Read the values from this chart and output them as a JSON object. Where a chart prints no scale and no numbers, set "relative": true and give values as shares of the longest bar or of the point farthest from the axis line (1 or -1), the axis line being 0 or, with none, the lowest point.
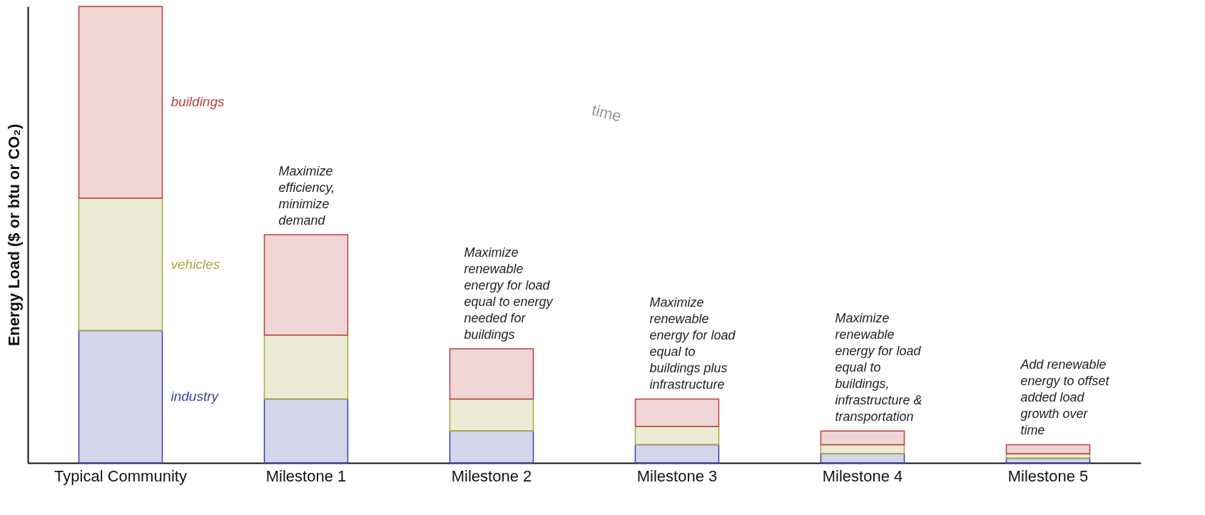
{
  "chart_data": {
    "type": "bar",
    "stacked": true,
    "relative": true,
    "ylabel": "Energy Load ($ or btu or CO₂)",
    "categories": [
      "Typical Community",
      "Milestone 1",
      "Milestone 2",
      "Milestone 3",
      "Milestone 4",
      "Milestone 5"
    ],
    "series": [
      {
        "name": "industry",
        "color": "#3b3fa8",
        "values": [
          0.29,
          0.14,
          0.07,
          0.04,
          0.02,
          0.01
        ]
      },
      {
        "name": "vehicles",
        "color": "#a9a83c",
        "values": [
          0.29,
          0.14,
          0.07,
          0.04,
          0.02,
          0.01
        ]
      },
      {
        "name": "buildings",
        "color": "#b8403f",
        "values": [
          0.42,
          0.22,
          0.11,
          0.06,
          0.03,
          0.02
        ]
      }
    ],
    "legend": false,
    "annotations": [
      {
        "text": "Maximize\nefficiency,\nminimize\ndemand",
        "x": "Milestone 1",
        "y": 0.5
      },
      {
        "text": "Maximize\nrenewable\nenergy for load\nequal to energy\nneeded for\nbuildings",
        "x": "Milestone 2",
        "y": 0.25
      },
      {
        "text": "Maximize\nrenewable\nenergy for load\nequal to\nbuildings plus\ninfrastructure",
        "x": "Milestone 3",
        "y": 0.14
      },
      {
        "text": "Maximize\nrenewable\nenergy for load\nequal to\nbuildings,\ninfrastructure &\ntransportation",
        "x": "Milestone 4",
        "y": 0.07
      },
      {
        "text": "Add renewable\nenergy to offset\nadded load\ngrowth over\ntime",
        "x": "Milestone 5",
        "y": 0.04
      },
      "time"
    ]
  }
}
